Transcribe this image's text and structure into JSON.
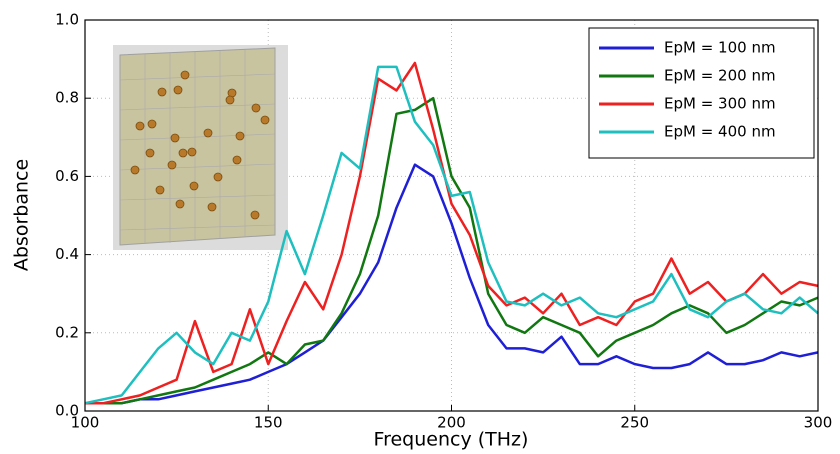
{
  "chart_data": {
    "type": "line",
    "xlabel": "Frequency (THz)",
    "ylabel": "Absorbance",
    "x": [
      100,
      105,
      110,
      115,
      120,
      125,
      130,
      135,
      140,
      145,
      150,
      155,
      160,
      165,
      170,
      175,
      180,
      185,
      190,
      195,
      200,
      205,
      210,
      215,
      220,
      225,
      230,
      235,
      240,
      245,
      250,
      255,
      260,
      265,
      270,
      275,
      280,
      285,
      290,
      295,
      300
    ],
    "series": [
      {
        "name": "EpM = 100 nm",
        "color": "#1f1fd6",
        "values": [
          0.02,
          0.02,
          0.02,
          0.03,
          0.03,
          0.04,
          0.05,
          0.06,
          0.07,
          0.08,
          0.1,
          0.12,
          0.15,
          0.18,
          0.24,
          0.3,
          0.38,
          0.52,
          0.63,
          0.6,
          0.48,
          0.34,
          0.22,
          0.16,
          0.16,
          0.15,
          0.19,
          0.12,
          0.12,
          0.14,
          0.12,
          0.11,
          0.11,
          0.12,
          0.15,
          0.12,
          0.12,
          0.13,
          0.15,
          0.14,
          0.15
        ]
      },
      {
        "name": "EpM = 200 nm",
        "color": "#117711",
        "values": [
          0.02,
          0.02,
          0.02,
          0.03,
          0.04,
          0.05,
          0.06,
          0.08,
          0.1,
          0.12,
          0.15,
          0.12,
          0.17,
          0.18,
          0.25,
          0.35,
          0.5,
          0.76,
          0.77,
          0.8,
          0.6,
          0.52,
          0.3,
          0.22,
          0.2,
          0.24,
          0.22,
          0.2,
          0.14,
          0.18,
          0.2,
          0.22,
          0.25,
          0.27,
          0.25,
          0.2,
          0.22,
          0.25,
          0.28,
          0.27,
          0.29
        ]
      },
      {
        "name": "EpM = 300 nm",
        "color": "#ee2020",
        "values": [
          0.02,
          0.02,
          0.03,
          0.04,
          0.06,
          0.08,
          0.23,
          0.1,
          0.12,
          0.26,
          0.12,
          0.23,
          0.33,
          0.26,
          0.4,
          0.6,
          0.85,
          0.82,
          0.89,
          0.72,
          0.53,
          0.45,
          0.32,
          0.27,
          0.29,
          0.25,
          0.3,
          0.22,
          0.24,
          0.22,
          0.28,
          0.3,
          0.39,
          0.3,
          0.33,
          0.28,
          0.3,
          0.35,
          0.3,
          0.33,
          0.32
        ]
      },
      {
        "name": "EpM = 400 nm",
        "color": "#1fbfbf",
        "values": [
          0.02,
          0.03,
          0.04,
          0.1,
          0.16,
          0.2,
          0.15,
          0.12,
          0.2,
          0.18,
          0.28,
          0.46,
          0.35,
          0.5,
          0.66,
          0.62,
          0.88,
          0.88,
          0.74,
          0.68,
          0.55,
          0.56,
          0.38,
          0.28,
          0.27,
          0.3,
          0.27,
          0.29,
          0.25,
          0.24,
          0.26,
          0.28,
          0.35,
          0.26,
          0.24,
          0.28,
          0.3,
          0.26,
          0.25,
          0.29,
          0.25
        ]
      }
    ],
    "xlim": [
      100,
      300
    ],
    "xticks": [
      100,
      150,
      200,
      250,
      300
    ],
    "ylim": [
      0,
      1
    ],
    "yticks": [
      {
        "value": 0,
        "label": "0.0"
      },
      0.2,
      0.4,
      0.6,
      0.8,
      {
        "value": 1,
        "label": "1.0"
      }
    ],
    "grid": true,
    "legend": "upper right"
  }
}
